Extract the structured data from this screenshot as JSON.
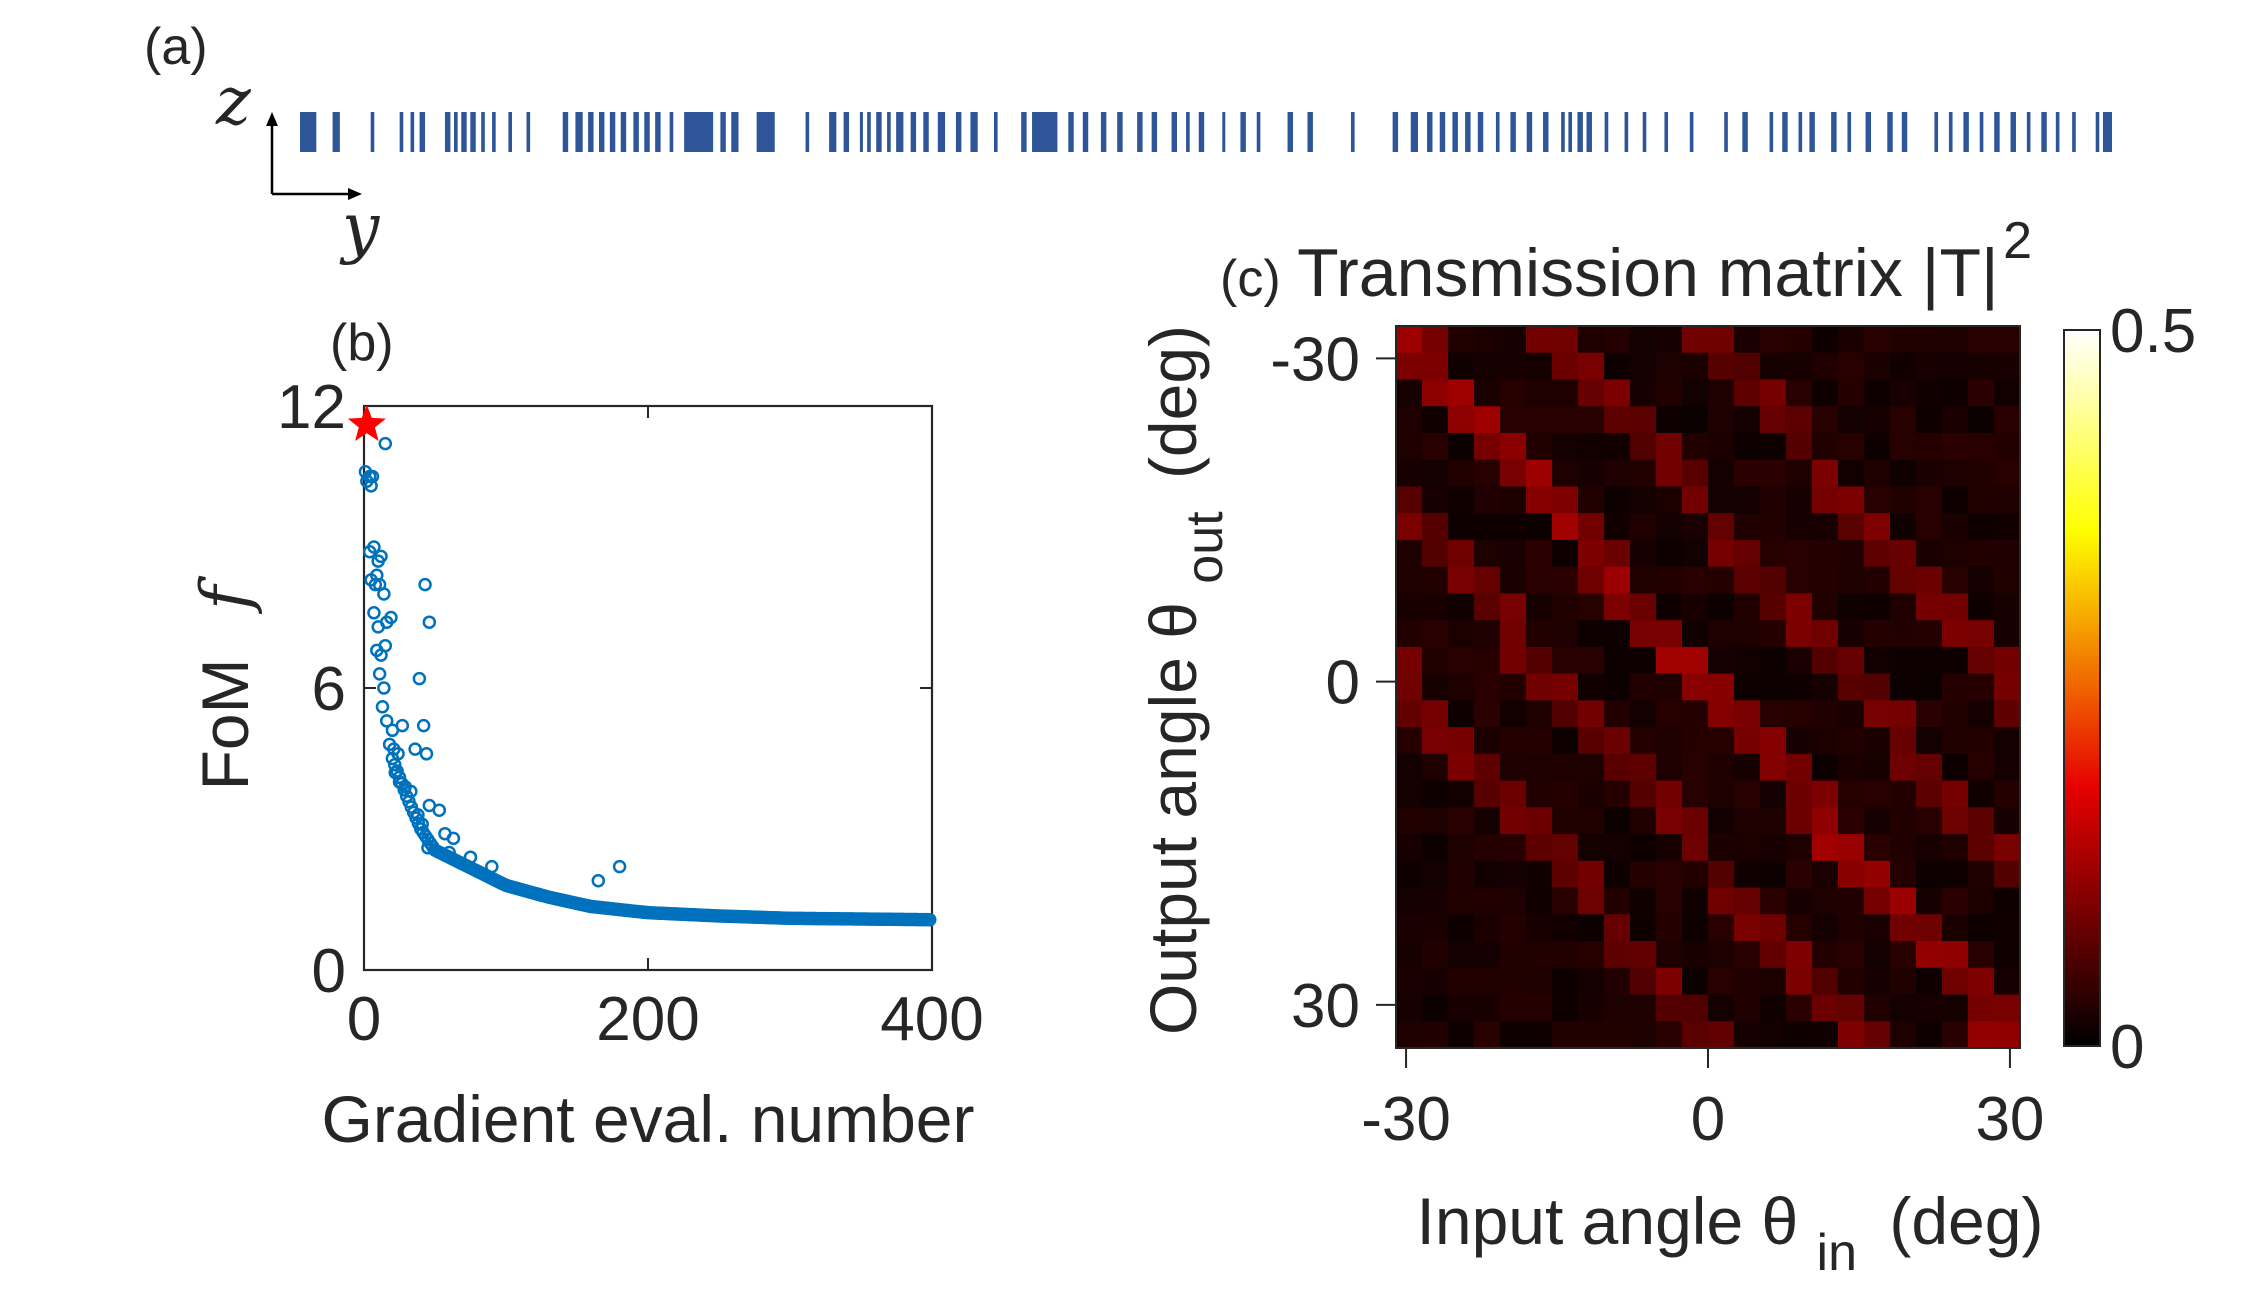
{
  "panel_a": {
    "label": "(a)",
    "z_label": "z",
    "y_label": "y",
    "bar_color": "#2e5597",
    "bars": [
      [
        0.0,
        0.009
      ],
      [
        0.018,
        0.022
      ],
      [
        0.039,
        0.041
      ],
      [
        0.055,
        0.057
      ],
      [
        0.061,
        0.063
      ],
      [
        0.066,
        0.069
      ],
      [
        0.08,
        0.083
      ],
      [
        0.085,
        0.087
      ],
      [
        0.089,
        0.092
      ],
      [
        0.094,
        0.097
      ],
      [
        0.1,
        0.102
      ],
      [
        0.106,
        0.108
      ],
      [
        0.115,
        0.117
      ],
      [
        0.125,
        0.127
      ],
      [
        0.145,
        0.148
      ],
      [
        0.152,
        0.156
      ],
      [
        0.159,
        0.162
      ],
      [
        0.165,
        0.168
      ],
      [
        0.171,
        0.174
      ],
      [
        0.177,
        0.18
      ],
      [
        0.184,
        0.187
      ],
      [
        0.19,
        0.193
      ],
      [
        0.196,
        0.199
      ],
      [
        0.204,
        0.206
      ],
      [
        0.212,
        0.228
      ],
      [
        0.232,
        0.235
      ],
      [
        0.238,
        0.242
      ],
      [
        0.252,
        0.262
      ],
      [
        0.279,
        0.281
      ],
      [
        0.292,
        0.296
      ],
      [
        0.3,
        0.303
      ],
      [
        0.309,
        0.31
      ],
      [
        0.313,
        0.315
      ],
      [
        0.318,
        0.321
      ],
      [
        0.324,
        0.326
      ],
      [
        0.329,
        0.333
      ],
      [
        0.337,
        0.34
      ],
      [
        0.344,
        0.347
      ],
      [
        0.352,
        0.356
      ],
      [
        0.362,
        0.365
      ],
      [
        0.37,
        0.374
      ],
      [
        0.383,
        0.385
      ],
      [
        0.398,
        0.401
      ],
      [
        0.404,
        0.418
      ],
      [
        0.424,
        0.427
      ],
      [
        0.432,
        0.435
      ],
      [
        0.442,
        0.445
      ],
      [
        0.451,
        0.454
      ],
      [
        0.462,
        0.465
      ],
      [
        0.47,
        0.473
      ],
      [
        0.481,
        0.484
      ],
      [
        0.489,
        0.491
      ],
      [
        0.496,
        0.499
      ],
      [
        0.509,
        0.51
      ],
      [
        0.519,
        0.522
      ],
      [
        0.528,
        0.53
      ],
      [
        0.545,
        0.548
      ],
      [
        0.556,
        0.559
      ],
      [
        0.58,
        0.582
      ],
      [
        0.603,
        0.606
      ],
      [
        0.613,
        0.617
      ],
      [
        0.622,
        0.625
      ],
      [
        0.629,
        0.632
      ],
      [
        0.636,
        0.639
      ],
      [
        0.643,
        0.646
      ],
      [
        0.65,
        0.653
      ],
      [
        0.66,
        0.662
      ],
      [
        0.668,
        0.671
      ],
      [
        0.677,
        0.68
      ],
      [
        0.686,
        0.689
      ],
      [
        0.696,
        0.698
      ],
      [
        0.7,
        0.702
      ],
      [
        0.705,
        0.708
      ],
      [
        0.71,
        0.713
      ],
      [
        0.72,
        0.722
      ],
      [
        0.731,
        0.733
      ],
      [
        0.741,
        0.743
      ],
      [
        0.753,
        0.755
      ],
      [
        0.767,
        0.769
      ],
      [
        0.786,
        0.788
      ],
      [
        0.796,
        0.799
      ],
      [
        0.811,
        0.813
      ],
      [
        0.818,
        0.821
      ],
      [
        0.827,
        0.829
      ],
      [
        0.833,
        0.836
      ],
      [
        0.845,
        0.848
      ],
      [
        0.854,
        0.856
      ],
      [
        0.864,
        0.867
      ],
      [
        0.876,
        0.879
      ],
      [
        0.884,
        0.887
      ],
      [
        0.902,
        0.904
      ],
      [
        0.91,
        0.912
      ],
      [
        0.918,
        0.921
      ],
      [
        0.927,
        0.929
      ],
      [
        0.935,
        0.938
      ],
      [
        0.944,
        0.947
      ],
      [
        0.953,
        0.955
      ],
      [
        0.961,
        0.964
      ],
      [
        0.969,
        0.971
      ],
      [
        0.978,
        0.98
      ],
      [
        0.991,
        0.993
      ],
      [
        0.995,
        1.0
      ]
    ]
  },
  "chart_data": [
    {
      "panel": "(b)",
      "type": "scatter",
      "xlabel": "Gradient eval. number",
      "ylabel": "FoM",
      "ylabel_symbol": "f",
      "xlim": [
        0,
        400
      ],
      "ylim": [
        0,
        12
      ],
      "xticks": [
        "0",
        "200",
        "400"
      ],
      "yticks": [
        "0",
        "6",
        "12"
      ],
      "marker_color": "#0072bd",
      "star_color": "#ff0000",
      "star_point": {
        "x": 2,
        "y": 11.6
      },
      "sample_points": [
        {
          "x": 1,
          "y": 10.6
        },
        {
          "x": 2,
          "y": 10.4
        },
        {
          "x": 4,
          "y": 10.5
        },
        {
          "x": 5,
          "y": 10.3
        },
        {
          "x": 6,
          "y": 10.5
        },
        {
          "x": 15,
          "y": 11.2
        },
        {
          "x": 4,
          "y": 8.9
        },
        {
          "x": 7,
          "y": 9.0
        },
        {
          "x": 10,
          "y": 8.7
        },
        {
          "x": 12,
          "y": 8.8
        },
        {
          "x": 5,
          "y": 8.3
        },
        {
          "x": 8,
          "y": 8.2
        },
        {
          "x": 9,
          "y": 8.4
        },
        {
          "x": 11,
          "y": 8.2
        },
        {
          "x": 14,
          "y": 8.0
        },
        {
          "x": 43,
          "y": 8.2
        },
        {
          "x": 7,
          "y": 7.6
        },
        {
          "x": 10,
          "y": 7.3
        },
        {
          "x": 16,
          "y": 7.4
        },
        {
          "x": 19,
          "y": 7.5
        },
        {
          "x": 46,
          "y": 7.4
        },
        {
          "x": 9,
          "y": 6.8
        },
        {
          "x": 12,
          "y": 6.7
        },
        {
          "x": 15,
          "y": 6.9
        },
        {
          "x": 11,
          "y": 6.3
        },
        {
          "x": 14,
          "y": 6.0
        },
        {
          "x": 39,
          "y": 6.2
        },
        {
          "x": 13,
          "y": 5.6
        },
        {
          "x": 16,
          "y": 5.3
        },
        {
          "x": 20,
          "y": 5.1
        },
        {
          "x": 27,
          "y": 5.2
        },
        {
          "x": 42,
          "y": 5.2
        },
        {
          "x": 18,
          "y": 4.8
        },
        {
          "x": 21,
          "y": 4.7
        },
        {
          "x": 24,
          "y": 4.6
        },
        {
          "x": 36,
          "y": 4.7
        },
        {
          "x": 44,
          "y": 4.6
        },
        {
          "x": 22,
          "y": 4.2
        },
        {
          "x": 25,
          "y": 4.0
        },
        {
          "x": 29,
          "y": 3.9
        },
        {
          "x": 33,
          "y": 3.8
        },
        {
          "x": 46,
          "y": 3.5
        },
        {
          "x": 53,
          "y": 3.4
        },
        {
          "x": 38,
          "y": 3.3
        },
        {
          "x": 41,
          "y": 3.1
        },
        {
          "x": 57,
          "y": 2.9
        },
        {
          "x": 63,
          "y": 2.8
        },
        {
          "x": 45,
          "y": 2.6
        },
        {
          "x": 60,
          "y": 2.5
        },
        {
          "x": 75,
          "y": 2.4
        },
        {
          "x": 90,
          "y": 2.2
        },
        {
          "x": 165,
          "y": 1.9
        },
        {
          "x": 180,
          "y": 2.2
        }
      ],
      "trend_points": [
        {
          "x": 20,
          "y": 4.5
        },
        {
          "x": 30,
          "y": 3.7
        },
        {
          "x": 40,
          "y": 3.0
        },
        {
          "x": 50,
          "y": 2.55
        },
        {
          "x": 70,
          "y": 2.25
        },
        {
          "x": 100,
          "y": 1.8
        },
        {
          "x": 130,
          "y": 1.55
        },
        {
          "x": 160,
          "y": 1.35
        },
        {
          "x": 200,
          "y": 1.22
        },
        {
          "x": 250,
          "y": 1.15
        },
        {
          "x": 300,
          "y": 1.1
        },
        {
          "x": 400,
          "y": 1.07
        }
      ]
    },
    {
      "panel": "(c)",
      "type": "heatmap",
      "title": "Transmission matrix |T|",
      "title_superscript": "2",
      "xlabel": "Input angle θ",
      "xlabel_subscript": "in",
      "xlabel_unit": "(deg)",
      "ylabel": "Output angle θ",
      "ylabel_subscript": "out",
      "ylabel_unit": "(deg)",
      "xticks": [
        "-30",
        "0",
        "30"
      ],
      "yticks": [
        "-30",
        "0",
        "30"
      ],
      "xlim": [
        -31,
        31
      ],
      "ylim": [
        -33,
        34
      ],
      "grid_size": [
        24,
        27
      ],
      "colorbar": {
        "min": 0,
        "max": 0.5,
        "ticks": [
          "0",
          "0.5"
        ],
        "colormap": "hot"
      },
      "diagonal_value": 0.1,
      "background_value": 0.02
    }
  ]
}
